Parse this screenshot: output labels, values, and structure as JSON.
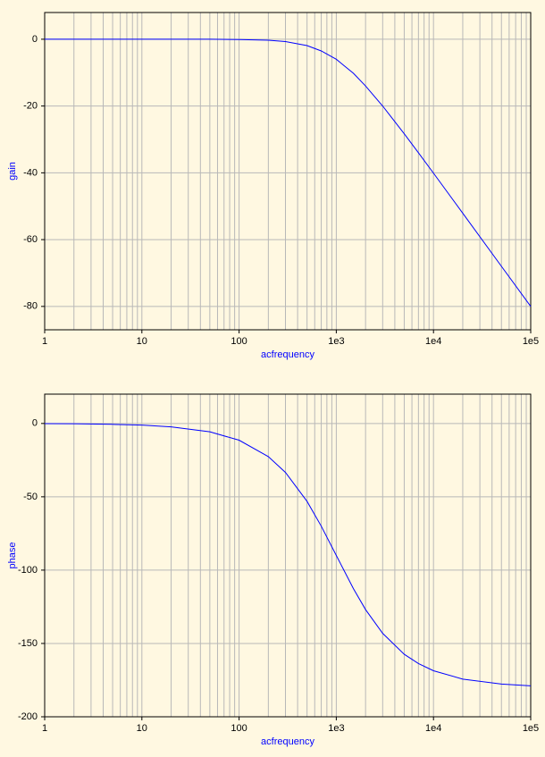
{
  "chart_data": [
    {
      "type": "line",
      "xlabel": "acfrequency",
      "ylabel": "gain",
      "xscale": "log",
      "grid": true,
      "xlim": [
        1,
        100000
      ],
      "xticks": [
        1,
        10,
        100,
        {
          "value": 1000,
          "label": "1e3"
        },
        {
          "value": 10000,
          "label": "1e4"
        },
        {
          "value": 100000,
          "label": "1e5"
        }
      ],
      "xminorticks": [
        2,
        3,
        4,
        5,
        6,
        7,
        8,
        9,
        20,
        30,
        40,
        50,
        60,
        70,
        80,
        90,
        200,
        300,
        400,
        500,
        600,
        700,
        800,
        900,
        2000,
        3000,
        4000,
        5000,
        6000,
        7000,
        8000,
        9000,
        20000,
        30000,
        40000,
        50000,
        60000,
        70000,
        80000,
        90000
      ],
      "ylim": [
        -87,
        8
      ],
      "yticks": [
        -80,
        -60,
        -40,
        -20,
        0
      ],
      "x": [
        1,
        2,
        5,
        10,
        20,
        50,
        100,
        200,
        300,
        500,
        700,
        1000,
        1500,
        2000,
        3000,
        5000,
        7000,
        10000,
        20000,
        50000,
        100000
      ],
      "color": "#0000ff",
      "values": [
        0,
        0,
        0,
        0,
        0,
        0,
        -0.1,
        -0.3,
        -0.7,
        -1.9,
        -3.5,
        -6,
        -10.2,
        -14,
        -20,
        -28.3,
        -34,
        -40.1,
        -52.1,
        -68,
        -80
      ]
    },
    {
      "type": "line",
      "xlabel": "acfrequency",
      "ylabel": "phase",
      "xscale": "log",
      "grid": true,
      "xlim": [
        1,
        100000
      ],
      "xticks": [
        1,
        10,
        100,
        {
          "value": 1000,
          "label": "1e3"
        },
        {
          "value": 10000,
          "label": "1e4"
        },
        {
          "value": 100000,
          "label": "1e5"
        }
      ],
      "xminorticks": [
        2,
        3,
        4,
        5,
        6,
        7,
        8,
        9,
        20,
        30,
        40,
        50,
        60,
        70,
        80,
        90,
        200,
        300,
        400,
        500,
        600,
        700,
        800,
        900,
        2000,
        3000,
        4000,
        5000,
        6000,
        7000,
        8000,
        9000,
        20000,
        30000,
        40000,
        50000,
        60000,
        70000,
        80000,
        90000
      ],
      "ylim": [
        -200,
        20
      ],
      "yticks": [
        -200,
        -150,
        -100,
        -50,
        0
      ],
      "x": [
        1,
        2,
        5,
        10,
        20,
        50,
        100,
        200,
        300,
        500,
        700,
        1000,
        1500,
        2000,
        3000,
        5000,
        7000,
        10000,
        20000,
        50000,
        100000
      ],
      "color": "#0000ff",
      "values": [
        -0.1,
        -0.2,
        -0.6,
        -1.1,
        -2.3,
        -5.7,
        -11.4,
        -22.6,
        -33.4,
        -53.1,
        -70,
        -90,
        -112.6,
        -126.9,
        -143.1,
        -157.4,
        -163.7,
        -168.6,
        -174.3,
        -177.7,
        -178.9
      ]
    }
  ]
}
